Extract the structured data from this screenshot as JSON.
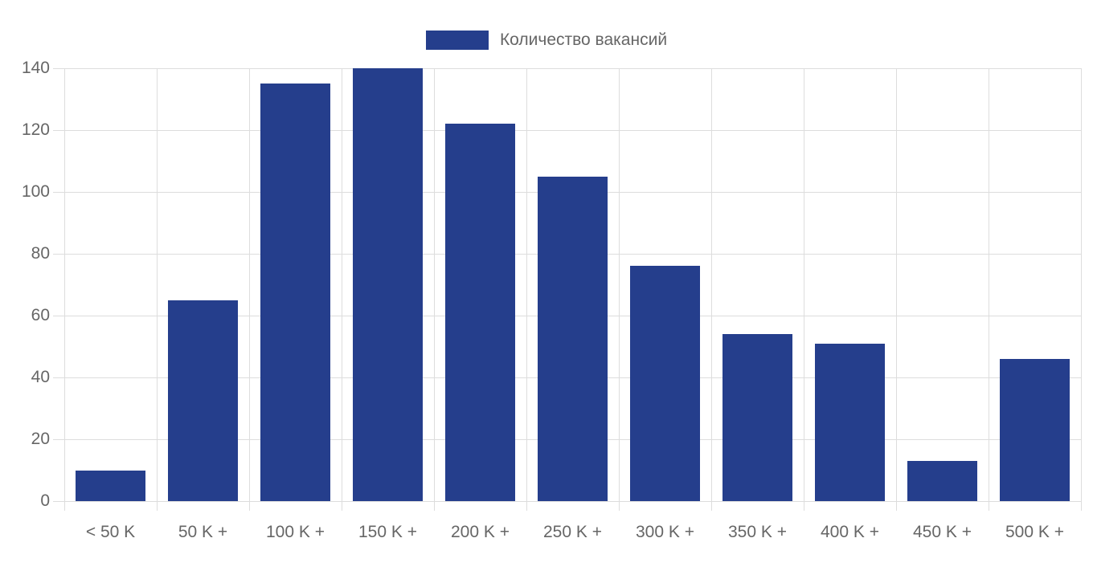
{
  "chart_data": {
    "type": "bar",
    "title": "",
    "categories": [
      "< 50 K",
      "50 K +",
      "100 K +",
      "150 K +",
      "200 K +",
      "250 K +",
      "300 K +",
      "350 K +",
      "400 K +",
      "450 K +",
      "500 K +"
    ],
    "series": [
      {
        "name": "Количество вакансий",
        "values": [
          10,
          65,
          135,
          140,
          122,
          105,
          76,
          54,
          51,
          13,
          46
        ],
        "color": "#253e8c"
      }
    ],
    "xlabel": "",
    "ylabel": "",
    "ylim": [
      0,
      140
    ],
    "yticks": [
      0,
      20,
      40,
      60,
      80,
      100,
      120,
      140
    ],
    "grid": true,
    "legend_position": "top",
    "colors": {
      "bar": "#253e8c",
      "grid": "#dddddd",
      "axis_text": "#666666"
    }
  }
}
